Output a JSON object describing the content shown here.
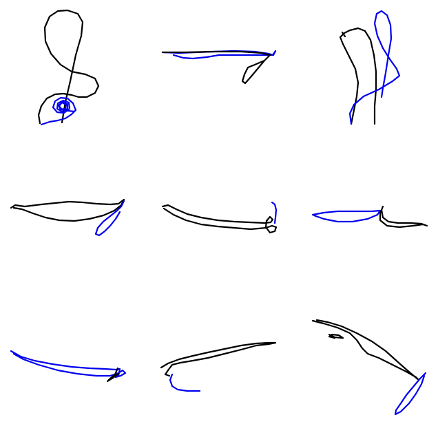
{
  "colors": {
    "background": "#ffffff",
    "primary_stroke": "#000000",
    "secondary_stroke": "#0000ee"
  }
}
